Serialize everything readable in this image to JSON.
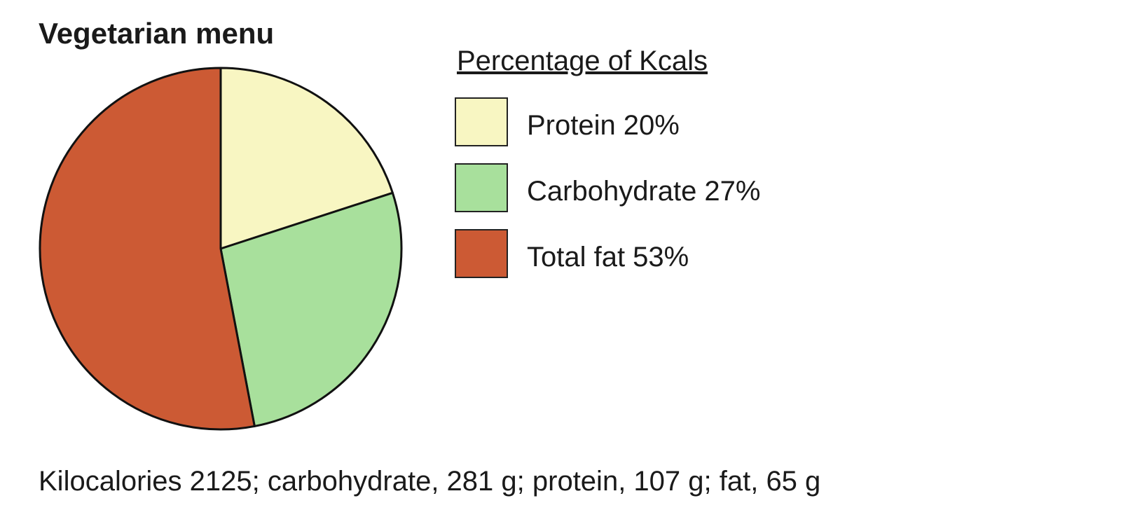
{
  "chart_data": {
    "type": "pie",
    "title": "Vegetarian menu",
    "legend_title": "Percentage of Kcals",
    "categories": [
      "Protein",
      "Carbohydrate",
      "Total fat"
    ],
    "values": [
      20,
      27,
      53
    ],
    "value_labels": [
      "20%",
      "27%",
      "53%"
    ],
    "colors": [
      "#f8f6c2",
      "#a8e09c",
      "#cc5a34"
    ],
    "note": "Kilocalories 2125; carbohydrate, 281 g; protein, 107 g; fat, 65 g"
  }
}
